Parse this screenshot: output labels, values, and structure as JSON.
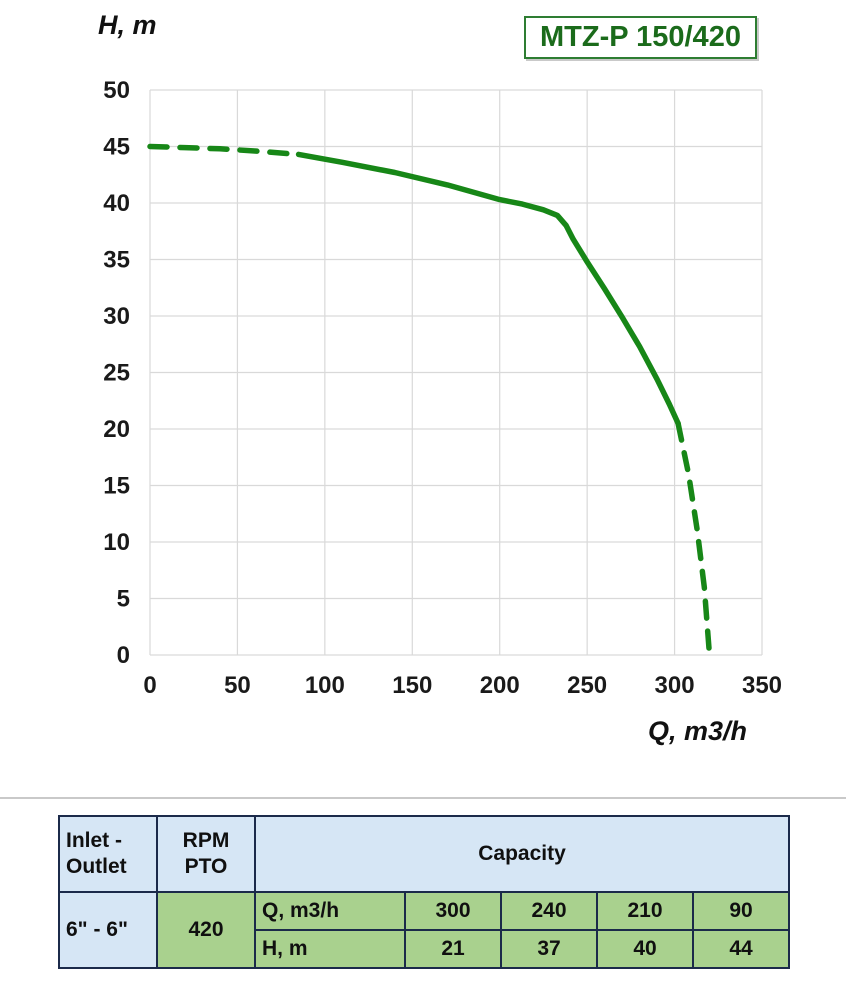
{
  "chart_data": {
    "type": "line",
    "title": "MTZ-P 150/420",
    "xlabel": "Q, m3/h",
    "ylabel": "H, m",
    "xlim": [
      0,
      350
    ],
    "ylim": [
      0,
      50
    ],
    "xticks": [
      0,
      50,
      100,
      150,
      200,
      250,
      300,
      350
    ],
    "yticks": [
      0,
      5,
      10,
      15,
      20,
      25,
      30,
      35,
      40,
      45,
      50
    ],
    "grid": true,
    "legend": "none",
    "curve_color": "#178717",
    "grid_color": "#d9d9d9",
    "series": [
      {
        "name": "head-curve-dashed-start",
        "style": "dashed",
        "points": [
          [
            0,
            45
          ],
          [
            20,
            44.9
          ],
          [
            40,
            44.8
          ],
          [
            60,
            44.6
          ],
          [
            85,
            44.3
          ]
        ]
      },
      {
        "name": "head-curve-solid",
        "style": "solid",
        "points": [
          [
            85,
            44.3
          ],
          [
            110,
            43.6
          ],
          [
            140,
            42.7
          ],
          [
            170,
            41.6
          ],
          [
            200,
            40.3
          ],
          [
            213,
            39.9
          ],
          [
            225,
            39.4
          ],
          [
            233,
            38.9
          ],
          [
            238,
            38.0
          ],
          [
            242,
            36.8
          ],
          [
            250,
            34.8
          ],
          [
            260,
            32.4
          ],
          [
            270,
            29.9
          ],
          [
            280,
            27.3
          ],
          [
            290,
            24.4
          ],
          [
            297,
            22.2
          ],
          [
            302,
            20.5
          ]
        ]
      },
      {
        "name": "head-curve-dashed-end",
        "style": "dashed",
        "points": [
          [
            302,
            20.5
          ],
          [
            308,
            16
          ],
          [
            313,
            11
          ],
          [
            317,
            6
          ],
          [
            320,
            0
          ]
        ]
      }
    ]
  },
  "table": {
    "inlet_header_line1": "Inlet -",
    "inlet_header_line2": "Outlet",
    "rpm_header_line1": "RPM",
    "rpm_header_line2": "PTO",
    "capacity_header": "Capacity",
    "inlet_value": "6\" - 6\"",
    "rpm_value": "420",
    "q_label": "Q, m3/h",
    "q_values": [
      "300",
      "240",
      "210",
      "90"
    ],
    "h_label": "H, m",
    "h_values": [
      "21",
      "37",
      "40",
      "44"
    ]
  }
}
